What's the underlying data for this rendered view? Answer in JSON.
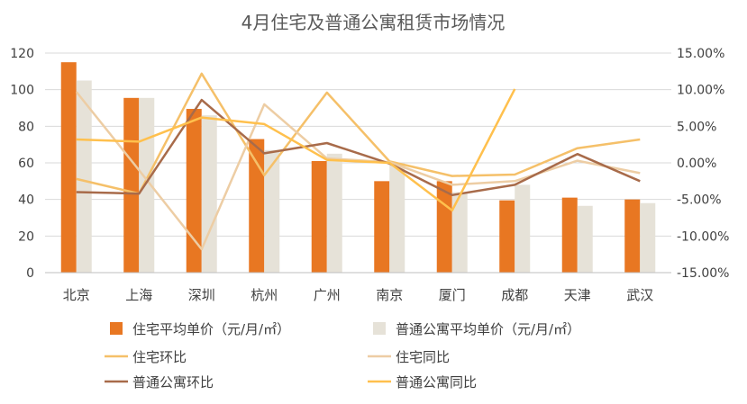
{
  "chart_data": {
    "type": "bar",
    "title": "4月住宅及普通公寓租赁市场情况",
    "categories": [
      "北京",
      "上海",
      "深圳",
      "杭州",
      "广州",
      "南京",
      "厦门",
      "成都",
      "天津",
      "武汉"
    ],
    "ylim_left": [
      0,
      120
    ],
    "left_ticks": [
      "0",
      "20",
      "40",
      "60",
      "80",
      "100",
      "120"
    ],
    "ylim_right": [
      -0.15,
      0.15
    ],
    "right_ticks": [
      "-15.00%",
      "-10.00%",
      "-5.00%",
      "0.00%",
      "5.00%",
      "10.00%",
      "15.00%"
    ],
    "grid": true,
    "legend_position": "bottom",
    "bar_series": [
      {
        "name": "住宅平均单价（元/月/㎡）",
        "color": "#E87722",
        "values": [
          115,
          95.5,
          89.5,
          73,
          61,
          50,
          50,
          39.5,
          41,
          40
        ]
      },
      {
        "name": "普通公寓平均单价（元/月/㎡）",
        "color": "#E6E2D8",
        "values": [
          105,
          95.5,
          86,
          67,
          65,
          60,
          44,
          48,
          36.5,
          38
        ]
      }
    ],
    "line_series": [
      {
        "name": "住宅环比",
        "color": "#F5C069",
        "values": [
          -0.022,
          -0.042,
          0.122,
          -0.017,
          0.096,
          0.002,
          -0.018,
          -0.016,
          0.02,
          0.032
        ]
      },
      {
        "name": "住宅同比",
        "color": "#EDCDA4",
        "values": [
          0.097,
          -0.01,
          -0.118,
          0.08,
          0.006,
          0.001,
          -0.03,
          -0.025,
          0.003,
          -0.014
        ]
      },
      {
        "name": "普通公寓环比",
        "color": "#A86B4A",
        "values": [
          -0.04,
          -0.042,
          0.086,
          0.013,
          0.027,
          -0.001,
          -0.044,
          -0.03,
          0.012,
          -0.025
        ]
      },
      {
        "name": "普通公寓同比",
        "color": "#FFC04D",
        "values": [
          0.032,
          0.029,
          0.062,
          0.053,
          0.004,
          0.0,
          -0.065,
          0.101,
          null,
          null
        ]
      }
    ]
  }
}
